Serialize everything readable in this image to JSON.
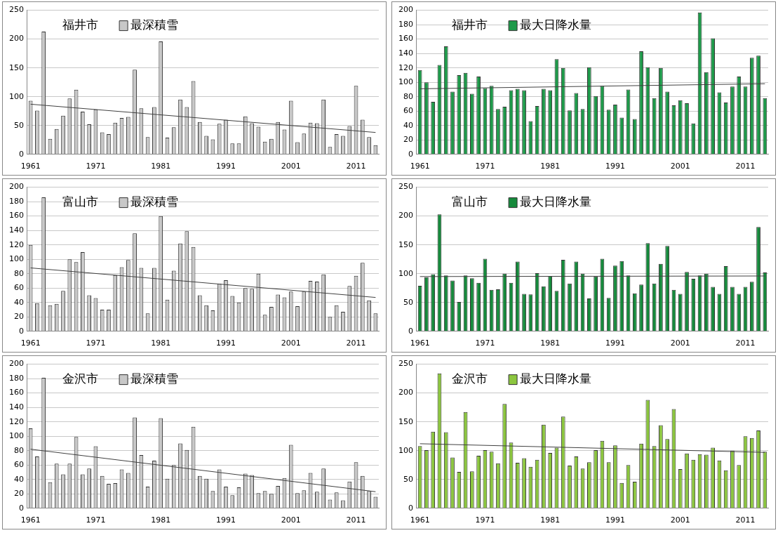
{
  "chart_data": [
    {
      "type": "bar",
      "title": "福井市",
      "categories": [
        "1961",
        null,
        null,
        null,
        null,
        null,
        null,
        null,
        null,
        null,
        "1971",
        null,
        null,
        null,
        null,
        null,
        null,
        null,
        null,
        null,
        "1981",
        null,
        null,
        null,
        null,
        null,
        null,
        null,
        null,
        null,
        "1991",
        null,
        null,
        null,
        null,
        null,
        null,
        null,
        null,
        null,
        "2001",
        null,
        null,
        null,
        null,
        null,
        null,
        null,
        null,
        null,
        "2011",
        null,
        null,
        null
      ],
      "ylim": [
        0,
        250
      ],
      "yticks": [
        0,
        50,
        100,
        150,
        200,
        250
      ],
      "grid": "y",
      "legend": "top left",
      "series": [
        {
          "name": "最深積雪",
          "color": "#c8c8c8",
          "values": [
            93,
            76,
            213,
            27,
            44,
            67,
            97,
            112,
            74,
            52,
            78,
            38,
            35,
            55,
            63,
            65,
            147,
            80,
            30,
            82,
            196,
            29,
            47,
            95,
            82,
            127,
            56,
            32,
            26,
            53,
            60,
            19,
            19,
            66,
            54,
            48,
            22,
            27,
            56,
            43,
            93,
            21,
            36,
            55,
            54,
            95,
            13,
            35,
            32,
            49,
            119,
            60,
            30,
            16
          ]
        },
        {
          "type": "line",
          "color": "#404040",
          "values": [
            87,
            null,
            null,
            null,
            null,
            null,
            null,
            null,
            null,
            null,
            null,
            null,
            null,
            null,
            null,
            null,
            null,
            null,
            null,
            null,
            null,
            null,
            null,
            null,
            null,
            null,
            null,
            null,
            null,
            null,
            null,
            null,
            null,
            null,
            null,
            null,
            null,
            null,
            null,
            null,
            null,
            null,
            null,
            null,
            null,
            null,
            null,
            null,
            null,
            null,
            null,
            null,
            null,
            38
          ]
        }
      ]
    },
    {
      "type": "bar",
      "title": "福井市",
      "categories": [
        "1961",
        null,
        null,
        null,
        null,
        null,
        null,
        null,
        null,
        null,
        "1971",
        null,
        null,
        null,
        null,
        null,
        null,
        null,
        null,
        null,
        "1981",
        null,
        null,
        null,
        null,
        null,
        null,
        null,
        null,
        null,
        "1991",
        null,
        null,
        null,
        null,
        null,
        null,
        null,
        null,
        null,
        "2001",
        null,
        null,
        null,
        null,
        null,
        null,
        null,
        null,
        null,
        "2011",
        null,
        null,
        null
      ],
      "ylim": [
        0,
        200
      ],
      "yticks": [
        0,
        20,
        40,
        60,
        80,
        100,
        120,
        140,
        160,
        180,
        200
      ],
      "grid": "y",
      "legend": "top left",
      "series": [
        {
          "name": "最大日降水量",
          "color": "#1e9a4a",
          "values": [
            117,
            100,
            73,
            124,
            150,
            87,
            110,
            113,
            84,
            108,
            92,
            95,
            63,
            66,
            89,
            91,
            89,
            46,
            67,
            91,
            89,
            132,
            120,
            61,
            85,
            63,
            121,
            81,
            95,
            62,
            69,
            51,
            90,
            49,
            143,
            121,
            78,
            120,
            87,
            68,
            75,
            71,
            43,
            197,
            114,
            161,
            86,
            72,
            94,
            108,
            94,
            134,
            137,
            78
          ]
        },
        {
          "type": "line",
          "color": "#404040",
          "values": [
            91,
            null,
            null,
            null,
            null,
            null,
            null,
            null,
            null,
            null,
            null,
            null,
            null,
            null,
            null,
            null,
            null,
            null,
            null,
            null,
            null,
            null,
            null,
            null,
            null,
            null,
            null,
            null,
            null,
            null,
            null,
            null,
            null,
            null,
            null,
            null,
            null,
            null,
            null,
            null,
            null,
            null,
            null,
            null,
            null,
            null,
            null,
            null,
            null,
            null,
            null,
            null,
            null,
            98
          ]
        }
      ]
    },
    {
      "type": "bar",
      "title": "富山市",
      "categories": [
        "1961",
        null,
        null,
        null,
        null,
        null,
        null,
        null,
        null,
        null,
        "1971",
        null,
        null,
        null,
        null,
        null,
        null,
        null,
        null,
        null,
        "1981",
        null,
        null,
        null,
        null,
        null,
        null,
        null,
        null,
        null,
        "1991",
        null,
        null,
        null,
        null,
        null,
        null,
        null,
        null,
        null,
        "2001",
        null,
        null,
        null,
        null,
        null,
        null,
        null,
        null,
        null,
        "2011",
        null,
        null,
        null
      ],
      "ylim": [
        0,
        200
      ],
      "yticks": [
        0,
        20,
        40,
        60,
        80,
        100,
        120,
        140,
        160,
        180,
        200
      ],
      "grid": "y",
      "legend": "top left",
      "series": [
        {
          "name": "最深積雪",
          "color": "#c8c8c8",
          "values": [
            120,
            39,
            186,
            36,
            38,
            56,
            100,
            96,
            110,
            50,
            46,
            30,
            30,
            78,
            89,
            99,
            136,
            88,
            25,
            88,
            160,
            44,
            84,
            122,
            139,
            117,
            50,
            36,
            29,
            66,
            71,
            49,
            40,
            60,
            59,
            80,
            23,
            34,
            51,
            47,
            55,
            35,
            55,
            70,
            69,
            79,
            20,
            36,
            27,
            63,
            77,
            95,
            43,
            25
          ]
        },
        {
          "type": "line",
          "color": "#404040",
          "values": [
            88,
            null,
            null,
            null,
            null,
            null,
            null,
            null,
            null,
            null,
            null,
            null,
            null,
            null,
            null,
            null,
            null,
            null,
            null,
            null,
            null,
            null,
            null,
            null,
            null,
            null,
            null,
            null,
            null,
            null,
            null,
            null,
            null,
            null,
            null,
            null,
            null,
            null,
            null,
            null,
            null,
            null,
            null,
            null,
            null,
            null,
            null,
            null,
            null,
            null,
            null,
            null,
            null,
            47
          ]
        }
      ]
    },
    {
      "type": "bar",
      "title": "富山市",
      "categories": [
        "1961",
        null,
        null,
        null,
        null,
        null,
        null,
        null,
        null,
        null,
        "1971",
        null,
        null,
        null,
        null,
        null,
        null,
        null,
        null,
        null,
        "1981",
        null,
        null,
        null,
        null,
        null,
        null,
        null,
        null,
        null,
        "1991",
        null,
        null,
        null,
        null,
        null,
        null,
        null,
        null,
        null,
        "2001",
        null,
        null,
        null,
        null,
        null,
        null,
        null,
        null,
        null,
        "2011",
        null,
        null,
        null
      ],
      "ylim": [
        0,
        250
      ],
      "yticks": [
        0,
        50,
        100,
        150,
        200,
        250
      ],
      "grid": "y",
      "legend": "top left",
      "series": [
        {
          "name": "最大日降水量",
          "color": "#168a3c",
          "values": [
            79,
            94,
            99,
            203,
            97,
            88,
            51,
            97,
            92,
            84,
            126,
            72,
            73,
            100,
            84,
            121,
            65,
            64,
            101,
            78,
            96,
            70,
            124,
            83,
            121,
            100,
            57,
            95,
            126,
            58,
            114,
            122,
            97,
            66,
            81,
            153,
            83,
            117,
            148,
            72,
            65,
            103,
            91,
            97,
            100,
            77,
            65,
            113,
            77,
            65,
            77,
            86,
            181,
            102
          ]
        },
        {
          "type": "line",
          "color": "#404040",
          "values": [
            95,
            null,
            null,
            null,
            null,
            null,
            null,
            null,
            null,
            null,
            null,
            null,
            null,
            null,
            null,
            null,
            null,
            null,
            null,
            null,
            null,
            null,
            null,
            null,
            null,
            null,
            null,
            null,
            null,
            null,
            null,
            null,
            null,
            null,
            null,
            null,
            null,
            null,
            null,
            null,
            null,
            null,
            null,
            null,
            null,
            null,
            null,
            null,
            null,
            null,
            null,
            null,
            null,
            96
          ]
        }
      ]
    },
    {
      "type": "bar",
      "title": "金沢市",
      "categories": [
        "1961",
        null,
        null,
        null,
        null,
        null,
        null,
        null,
        null,
        null,
        "1971",
        null,
        null,
        null,
        null,
        null,
        null,
        null,
        null,
        null,
        "1981",
        null,
        null,
        null,
        null,
        null,
        null,
        null,
        null,
        null,
        "1991",
        null,
        null,
        null,
        null,
        null,
        null,
        null,
        null,
        null,
        "2001",
        null,
        null,
        null,
        null,
        null,
        null,
        null,
        null,
        null,
        "2011",
        null,
        null,
        null
      ],
      "ylim": [
        0,
        200
      ],
      "yticks": [
        0,
        20,
        40,
        60,
        80,
        100,
        120,
        140,
        160,
        180,
        200
      ],
      "grid": "y",
      "legend": "top left",
      "series": [
        {
          "name": "最深積雪",
          "color": "#c8c8c8",
          "values": [
            111,
            72,
            181,
            36,
            62,
            47,
            62,
            99,
            47,
            55,
            86,
            45,
            34,
            35,
            54,
            49,
            126,
            74,
            30,
            66,
            125,
            41,
            60,
            90,
            81,
            113,
            45,
            41,
            24,
            54,
            30,
            18,
            29,
            48,
            46,
            21,
            24,
            20,
            31,
            42,
            88,
            21,
            25,
            49,
            23,
            55,
            12,
            22,
            11,
            37,
            64,
            45,
            24,
            16
          ]
        },
        {
          "type": "line",
          "color": "#404040",
          "values": [
            82,
            null,
            null,
            null,
            null,
            null,
            null,
            null,
            null,
            null,
            null,
            null,
            null,
            null,
            null,
            null,
            null,
            null,
            null,
            null,
            null,
            null,
            null,
            null,
            null,
            null,
            null,
            null,
            null,
            null,
            null,
            null,
            null,
            null,
            null,
            null,
            null,
            null,
            null,
            null,
            null,
            null,
            null,
            null,
            null,
            null,
            null,
            null,
            null,
            null,
            null,
            null,
            null,
            23
          ]
        }
      ]
    },
    {
      "type": "bar",
      "title": "金沢市",
      "categories": [
        "1961",
        null,
        null,
        null,
        null,
        null,
        null,
        null,
        null,
        null,
        "1971",
        null,
        null,
        null,
        null,
        null,
        null,
        null,
        null,
        null,
        "1981",
        null,
        null,
        null,
        null,
        null,
        null,
        null,
        null,
        null,
        "1991",
        null,
        null,
        null,
        null,
        null,
        null,
        null,
        null,
        null,
        "2001",
        null,
        null,
        null,
        null,
        null,
        null,
        null,
        null,
        null,
        "2011",
        null,
        null,
        null
      ],
      "ylim": [
        0,
        250
      ],
      "yticks": [
        0,
        50,
        100,
        150,
        200,
        250
      ],
      "grid": "y",
      "legend": "top left",
      "series": [
        {
          "name": "最大日降水量",
          "color": "#8cc63f",
          "values": [
            108,
            101,
            133,
            234,
            132,
            88,
            63,
            167,
            64,
            91,
            101,
            98,
            78,
            181,
            114,
            79,
            87,
            72,
            84,
            145,
            96,
            105,
            159,
            74,
            90,
            69,
            80,
            101,
            117,
            80,
            109,
            44,
            75,
            46,
            112,
            188,
            108,
            144,
            120,
            172,
            68,
            95,
            84,
            94,
            93,
            105,
            83,
            66,
            100,
            75,
            125,
            122,
            135,
            98
          ]
        },
        {
          "type": "line",
          "color": "#404040",
          "values": [
            112,
            null,
            null,
            null,
            null,
            null,
            null,
            null,
            null,
            null,
            null,
            null,
            null,
            null,
            null,
            null,
            null,
            null,
            null,
            null,
            null,
            null,
            null,
            null,
            null,
            null,
            null,
            null,
            null,
            null,
            null,
            null,
            null,
            null,
            null,
            null,
            null,
            null,
            null,
            null,
            null,
            null,
            null,
            null,
            null,
            null,
            null,
            null,
            null,
            null,
            null,
            null,
            null,
            97
          ]
        }
      ]
    }
  ]
}
